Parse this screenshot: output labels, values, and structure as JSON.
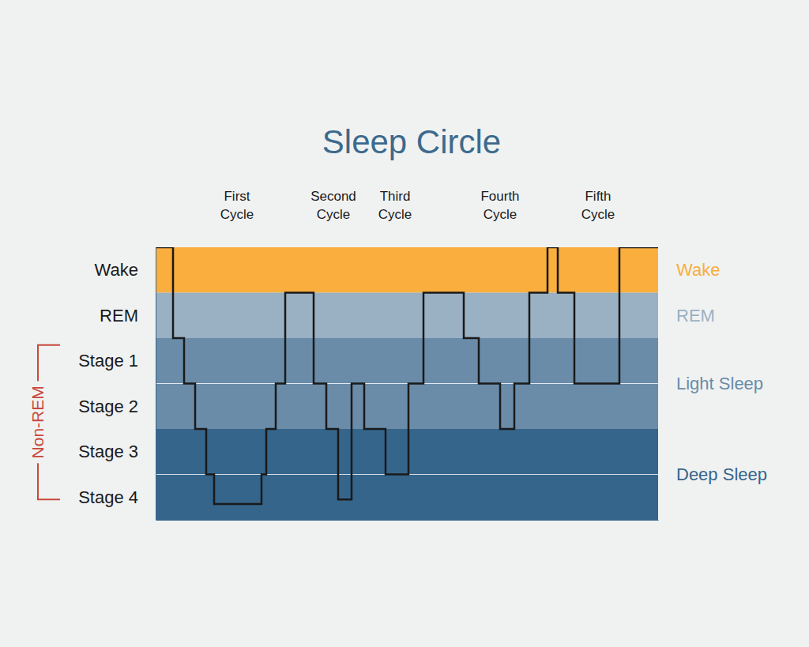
{
  "chart_data": {
    "type": "line",
    "title": "Sleep Circle",
    "line_style": "step",
    "color": "#1a1a1a",
    "x": [
      0,
      22,
      36,
      50,
      64,
      74,
      134,
      140,
      152,
      164,
      200,
      216,
      231,
      248,
      264,
      291,
      320,
      339,
      390,
      409,
      436,
      454,
      473,
      496,
      509,
      530,
      587,
      636
    ],
    "values": [
      6,
      4,
      3,
      2,
      1,
      0.35,
      1,
      2,
      3,
      5,
      3,
      2,
      0.45,
      3,
      2,
      1,
      3,
      5,
      4,
      3,
      2,
      3,
      5,
      6,
      5,
      3,
      6,
      6
    ],
    "xlim": [
      0,
      636
    ],
    "ylim": [
      0,
      6
    ],
    "yticks": [
      {
        "value": 0.5,
        "label": "Stage 4"
      },
      {
        "value": 1.5,
        "label": "Stage 3"
      },
      {
        "value": 2.5,
        "label": "Stage 2"
      },
      {
        "value": 3.5,
        "label": "Stage 1"
      },
      {
        "value": 4.5,
        "label": "REM"
      },
      {
        "value": 5.5,
        "label": "Wake"
      }
    ],
    "tick_labels": "y",
    "bands": [
      {
        "label": "Wake",
        "from": 5,
        "to": 6,
        "color": "#f9ae3e"
      },
      {
        "label": "REM",
        "from": 4,
        "to": 5,
        "color": "#9ab0c3"
      },
      {
        "label": "Light Sleep",
        "from": 2,
        "to": 4,
        "color": "#6a8ca9"
      },
      {
        "label": "Deep Sleep",
        "from": 0,
        "to": 2,
        "color": "#35658b"
      }
    ],
    "bracket": {
      "label": "Non-REM",
      "from": 0.45,
      "to": 3.85,
      "color": "#c8483b"
    },
    "annotations": [
      {
        "text": "First Cycle",
        "x": 103
      },
      {
        "text": "Second Cycle",
        "x": 225
      },
      {
        "text": "Third Cycle",
        "x": 303
      },
      {
        "text": "Fourth Cycle",
        "x": 436
      },
      {
        "text": "Fifth Cycle",
        "x": 560
      }
    ]
  }
}
